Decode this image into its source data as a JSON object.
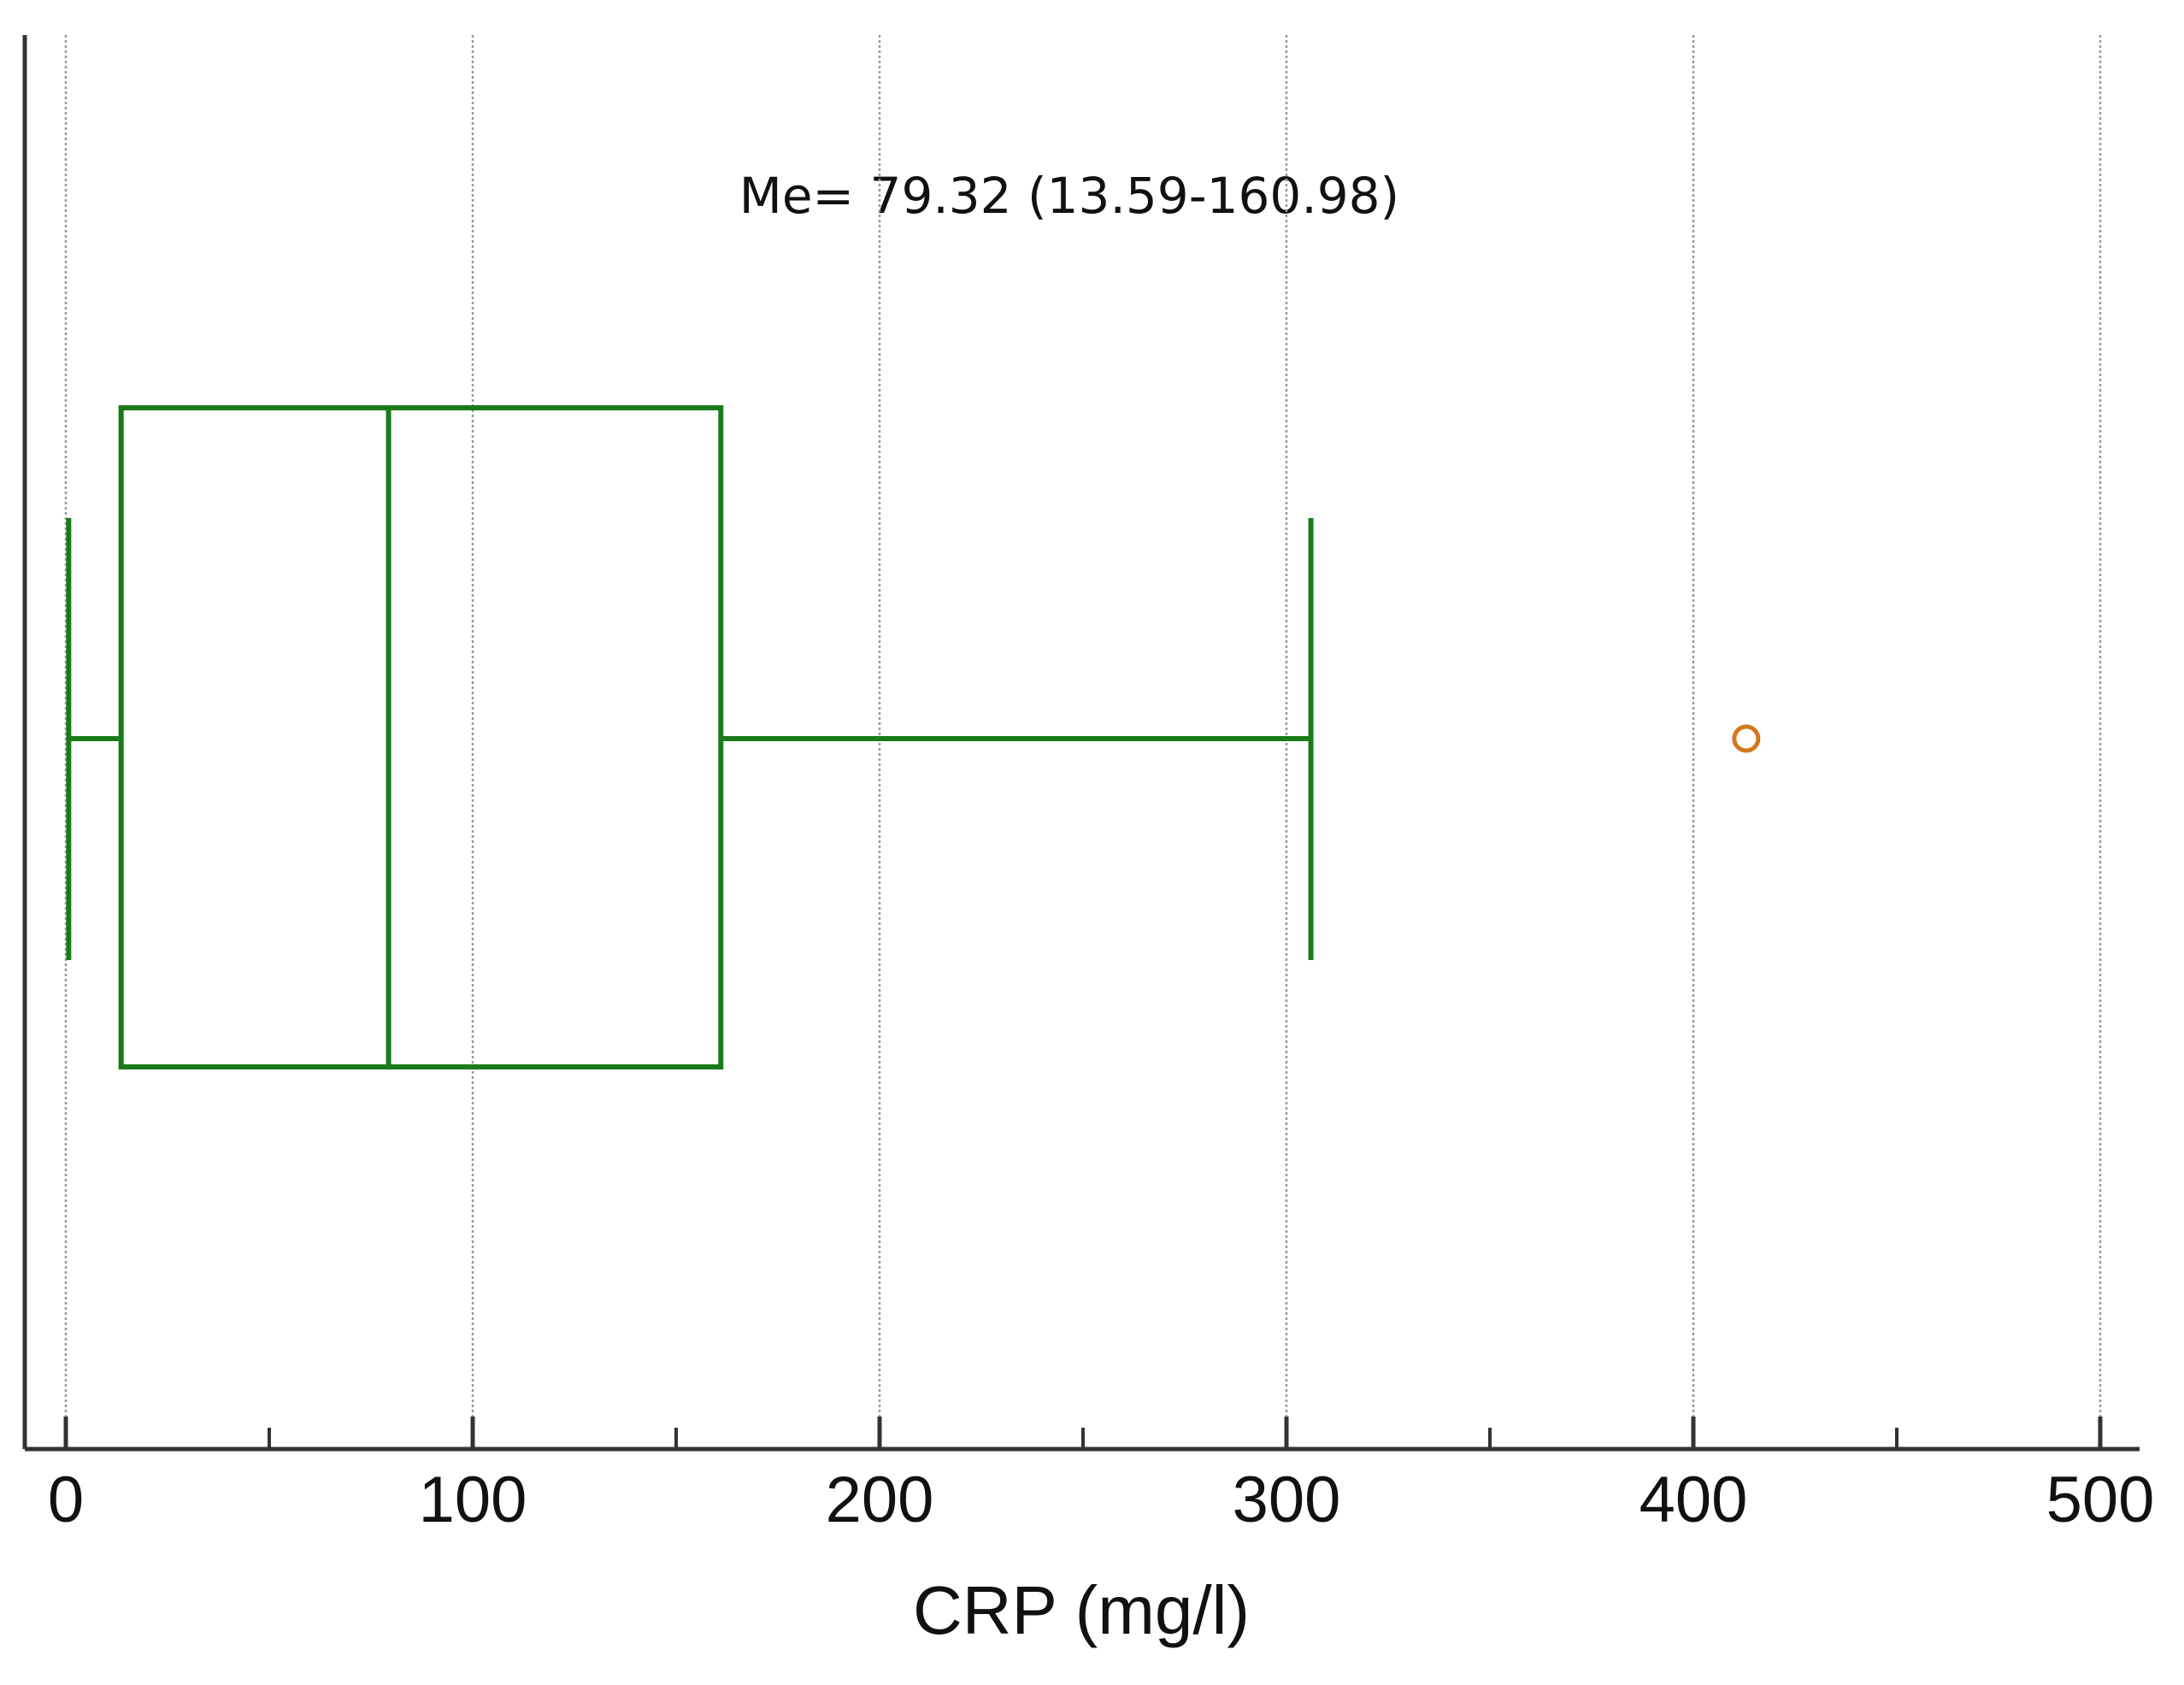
{
  "chart_data": {
    "type": "box",
    "orientation": "horizontal",
    "x_label": "CRP (mg/l)",
    "annotation": "Me= 79.32 (13.59-160.98)",
    "boxes": [
      {
        "whislo": 0.7,
        "q1": 13.59,
        "med": 79.32,
        "q3": 160.98,
        "whishi": 306,
        "fliers": [
          413
        ]
      }
    ],
    "color": "#1a7a1a",
    "flier_color": "#d2781e",
    "xlim": [
      0,
      500
    ],
    "xticks": [
      0,
      100,
      200,
      300,
      400,
      500
    ],
    "xminorticks": [
      50,
      150,
      250,
      350,
      450
    ],
    "grid": true
  }
}
